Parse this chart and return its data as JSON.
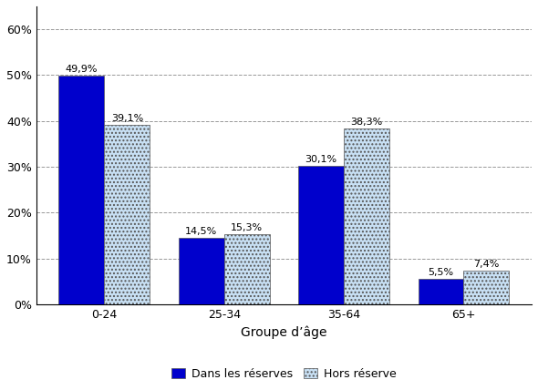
{
  "categories": [
    "0-24",
    "25-34",
    "35-64",
    "65+"
  ],
  "series": {
    "Dans les réserves": [
      49.9,
      14.5,
      30.1,
      5.5
    ],
    "Hors réserve": [
      39.1,
      15.3,
      38.3,
      7.4
    ]
  },
  "bar_colors": {
    "Dans les réserves": "#0000CC",
    "Hors réserve": "#C8E0F4"
  },
  "bar_hatch": {
    "Dans les réserves": null,
    "Hors réserve": "...."
  },
  "xlabel": "Groupe d’âge",
  "ylim": [
    0,
    65
  ],
  "yticks": [
    0,
    10,
    20,
    30,
    40,
    50,
    60
  ],
  "ytick_labels": [
    "0%",
    "10%",
    "20%",
    "30%",
    "40%",
    "50%",
    "60%"
  ],
  "grid_color": "#999999",
  "background_color": "#FFFFFF",
  "bar_width": 0.38,
  "label_fontsize": 8,
  "tick_fontsize": 9,
  "xlabel_fontsize": 10,
  "legend_fontsize": 9
}
